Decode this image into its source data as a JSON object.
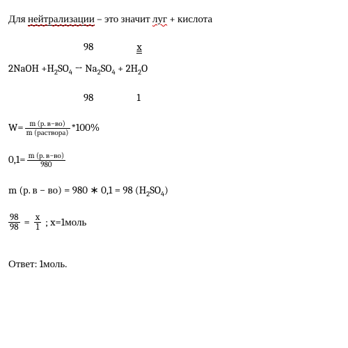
{
  "intro": {
    "word1": "Для",
    "underlined": "нейтрализации",
    "rest": " – это значит ",
    "wavy": "луг",
    "tail": " + кислота"
  },
  "above": {
    "m": "98",
    "x": "x"
  },
  "reaction": {
    "lhs1": "2NaOH +H",
    "sub1": "2",
    "acid": "SO",
    "sub2": "4",
    "arrow": " → Na",
    "sub3": "2",
    "so": "SO",
    "sub4": "4",
    "plus": " + 2H",
    "sub5": "2",
    "o": "O"
  },
  "below": {
    "M": "98",
    "n": "1"
  },
  "wformula": {
    "W": "W=",
    "num": "m (р. в−во)",
    "den": "m (раствора)",
    "tail": " *100%"
  },
  "plug": {
    "lhs": "0,1=",
    "num": "m (р. в−во)",
    "den": "980"
  },
  "mcalc": "m (р. в − во) = 980 ∗ 0,1 = 98 (H",
  "mcalc_sub": "2",
  "mcalc_so": "SO",
  "mcalc_sub2": "4",
  "mcalc_tail": ")",
  "ratio": {
    "n1": "98",
    "d1": "98",
    "eq": " = ",
    "n2": "x",
    "d2": "1",
    "semi": ";   x=1моль"
  },
  "answer": "Ответ: 1моль."
}
